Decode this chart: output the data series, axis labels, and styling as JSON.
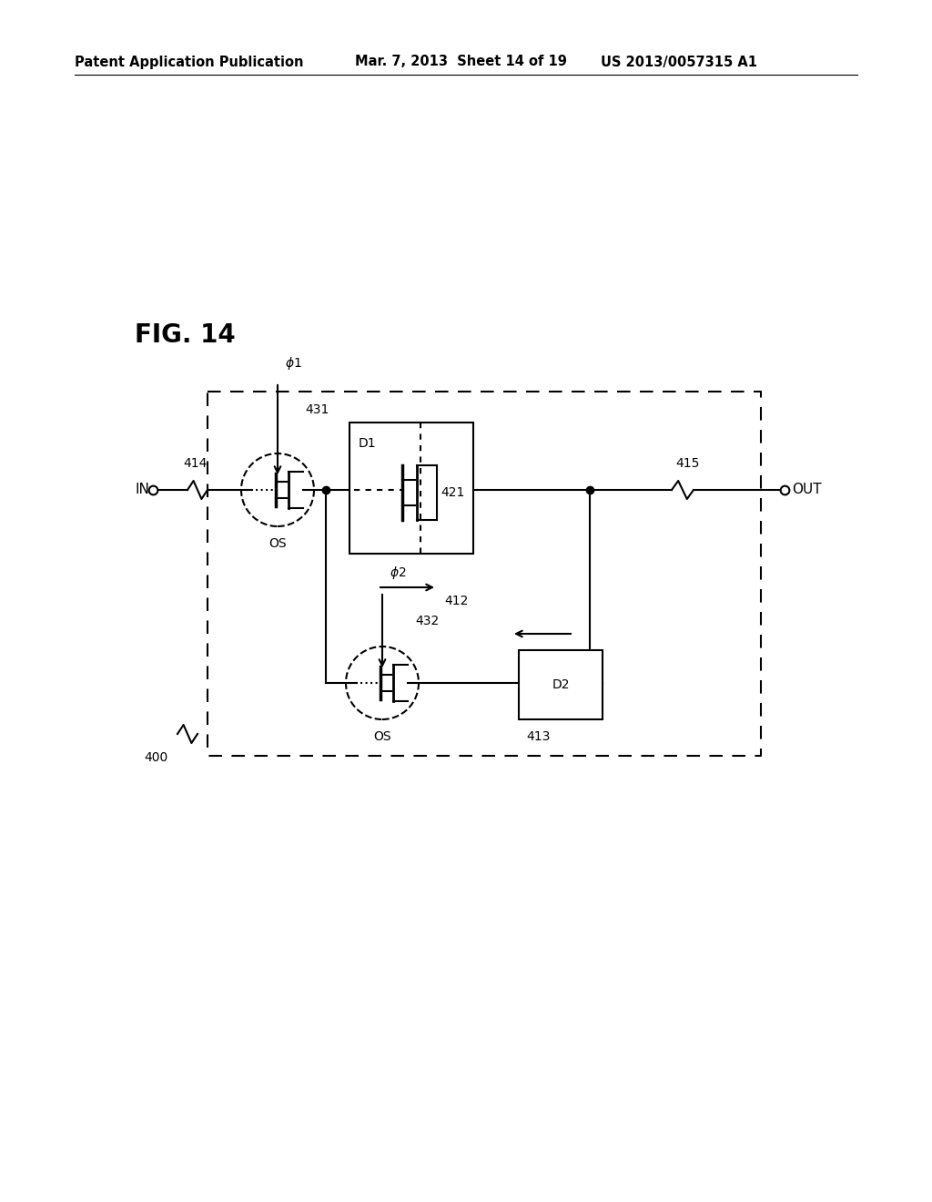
{
  "header_left": "Patent Application Publication",
  "header_mid": "Mar. 7, 2013  Sheet 14 of 19",
  "header_right": "US 2013/0057315 A1",
  "fig_label": "FIG. 14",
  "bg_color": "#ffffff"
}
